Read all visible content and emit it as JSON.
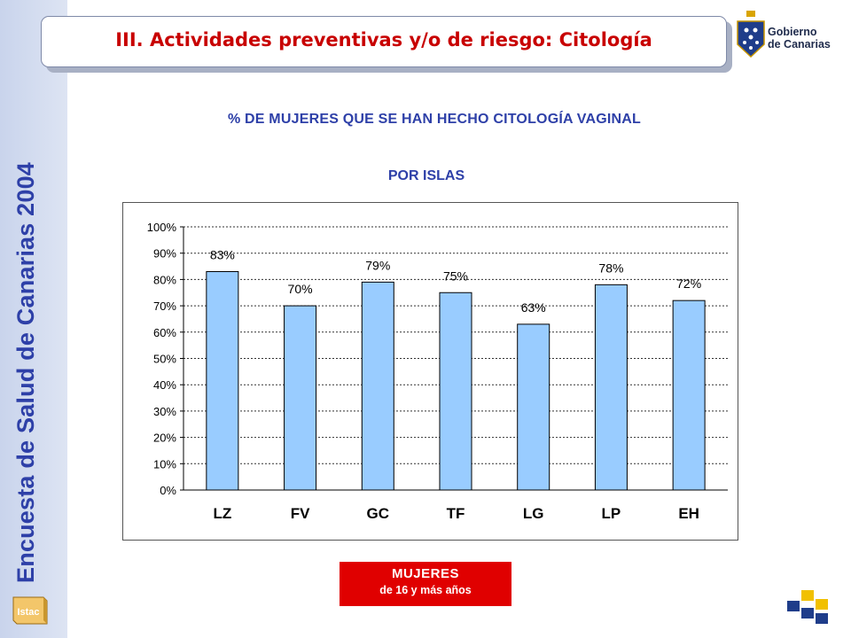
{
  "header": {
    "title": "III. Actividades preventivas y/o de riesgo: Citología",
    "sidebar_title": "Encuesta de Salud de Canarias 2004",
    "gov_line1": "Gobierno",
    "gov_line2": "de Canarias",
    "istac_label": "Istac"
  },
  "badge": {
    "line1": "MUJERES",
    "line2": "de 16 y más años"
  },
  "colors": {
    "title_red": "#c80000",
    "text_blue": "#2e40a8",
    "bar_fill": "#99ccff",
    "badge_red": "#e00000"
  },
  "chart_data": {
    "type": "bar",
    "title": "% DE MUJERES QUE SE HAN HECHO CITOLOGÍA VAGINAL",
    "subtitle": "POR ISLAS",
    "categories": [
      "LZ",
      "FV",
      "GC",
      "TF",
      "LG",
      "LP",
      "EH"
    ],
    "values": [
      83,
      70,
      79,
      75,
      63,
      78,
      72
    ],
    "data_labels": [
      "83%",
      "70%",
      "79%",
      "75%",
      "63%",
      "78%",
      "72%"
    ],
    "yticks": [
      "0%",
      "10%",
      "20%",
      "30%",
      "40%",
      "50%",
      "60%",
      "70%",
      "80%",
      "90%",
      "100%"
    ],
    "ylim": [
      0,
      100
    ],
    "grid": true,
    "legend": "none"
  }
}
